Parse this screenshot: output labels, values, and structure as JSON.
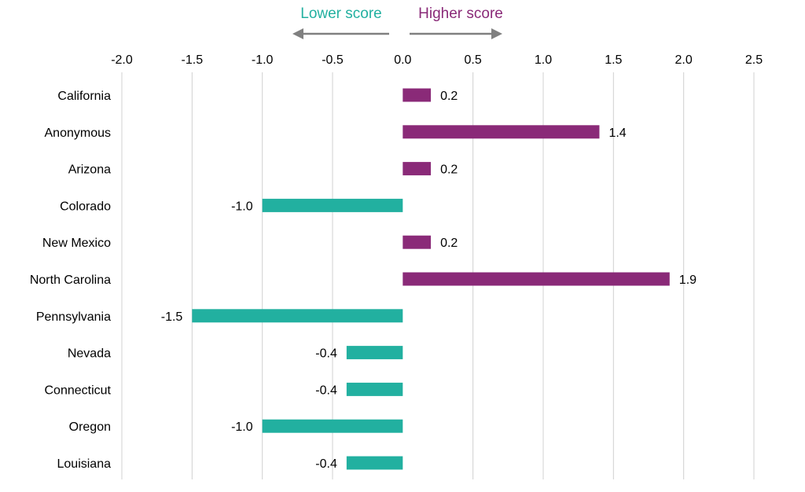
{
  "chart_data": {
    "type": "bar",
    "orientation": "horizontal",
    "categories": [
      "California",
      "Anonymous",
      "Arizona",
      "Colorado",
      "New Mexico",
      "North Carolina",
      "Pennsylvania",
      "Nevada",
      "Connecticut",
      "Oregon",
      "Louisiana"
    ],
    "values": [
      0.2,
      1.4,
      0.2,
      -1.0,
      0.2,
      1.9,
      -1.5,
      -0.4,
      -0.4,
      -1.0,
      -0.4
    ],
    "data_labels": [
      "0.2",
      "1.4",
      "0.2",
      "-1.0",
      "0.2",
      "1.9",
      "-1.5",
      "-0.4",
      "-0.4",
      "-1.0",
      "-0.4"
    ],
    "xlim": [
      -2.0,
      2.5
    ],
    "x_ticks": [
      -2.0,
      -1.5,
      -1.0,
      -0.5,
      0.0,
      0.5,
      1.0,
      1.5,
      2.0,
      2.5
    ],
    "x_tick_labels": [
      "-2.0",
      "-1.5",
      "-1.0",
      "-0.5",
      "0.0",
      "0.5",
      "1.0",
      "1.5",
      "2.0",
      "2.5"
    ],
    "xaxis_position": "top",
    "grid": "vertical",
    "legend": {
      "negative": {
        "label": "Lower score",
        "color": "#22b0a0"
      },
      "positive": {
        "label": "Higher score",
        "color": "#8a2a78"
      }
    },
    "colors": {
      "positive": "#8a2a78",
      "negative": "#22b0a0",
      "grid": "#d0d0d0",
      "arrow": "#808080"
    }
  }
}
